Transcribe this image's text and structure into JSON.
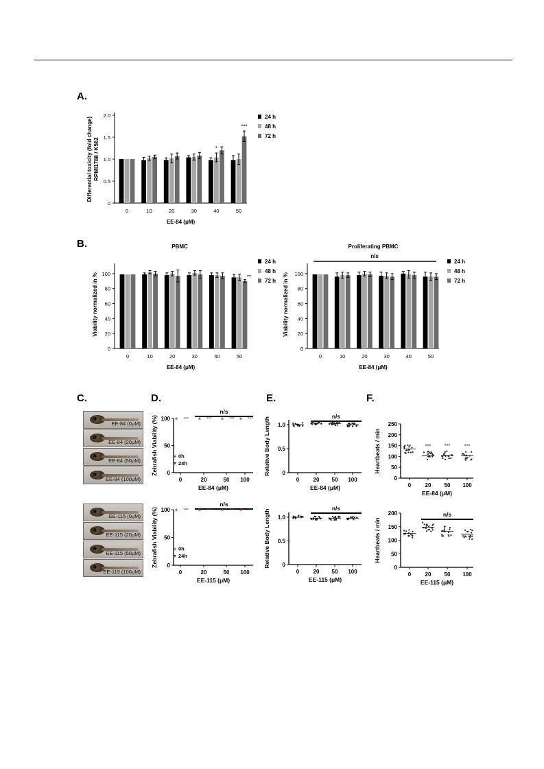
{
  "panel_labels": {
    "a": "A.",
    "b": "B.",
    "c": "C.",
    "d": "D.",
    "e": "E.",
    "f": "F."
  },
  "embryos": {
    "ee84": [
      "EE-84 (0μM)",
      "EE-84 (20μM)",
      "EE-84 (50μM)",
      "EE-84 (100μM)"
    ],
    "ee115": [
      "EE-115 (0μM)",
      "EE-115 (20μM)",
      "EE-115 (50μM)",
      "EE-115 (100μM)"
    ]
  },
  "colors": {
    "h24": "#000000",
    "h48": "#a6a6a6",
    "h72": "#6b6b6b",
    "h0_point": "#e8302a",
    "h24_point": "#2233cc"
  },
  "chart_data": [
    {
      "id": "A",
      "type": "bar",
      "title": "",
      "xlabel": "EE-84 (μM)",
      "ylabel_line1": "Differential toxicity (fold change)",
      "ylabel_line2": "RPMI1788 / K562",
      "categories": [
        "0",
        "10",
        "20",
        "30",
        "40",
        "50"
      ],
      "ylim": [
        0,
        2.0
      ],
      "yticks": [
        "0",
        "0.5",
        "1.0",
        "1.5",
        "2.0"
      ],
      "legend": [
        "24 h",
        "48 h",
        "72 h"
      ],
      "series": [
        {
          "name": "24 h",
          "values": [
            1.0,
            0.98,
            0.98,
            1.04,
            0.98,
            0.98
          ],
          "errors": [
            0,
            0.06,
            0.05,
            0.04,
            0.05,
            0.1
          ]
        },
        {
          "name": "48 h",
          "values": [
            1.0,
            1.02,
            1.02,
            1.05,
            1.04,
            1.0
          ],
          "errors": [
            0,
            0.05,
            0.1,
            0.07,
            0.1,
            0.12
          ]
        },
        {
          "name": "72 h",
          "values": [
            1.0,
            1.05,
            1.07,
            1.08,
            1.2,
            1.52
          ],
          "errors": [
            0,
            0.04,
            0.07,
            0.07,
            0.08,
            0.12
          ]
        }
      ],
      "annotations": [
        {
          "category": "40",
          "series": "48 h",
          "text": "*"
        },
        {
          "category": "50",
          "series": "72 h",
          "text": "***"
        }
      ]
    },
    {
      "id": "B1",
      "type": "bar",
      "title": "PBMC",
      "xlabel": "EE-84 (μM)",
      "ylabel": "Viability normalized in %",
      "categories": [
        "0",
        "10",
        "20",
        "30",
        "40",
        "50"
      ],
      "ylim": [
        0,
        110
      ],
      "yticks": [
        "0",
        "20",
        "40",
        "60",
        "80",
        "100"
      ],
      "legend": [
        "24 h",
        "48 h",
        "72 h"
      ],
      "series": [
        {
          "name": "24 h",
          "values": [
            99,
            99,
            98,
            98,
            98,
            95
          ],
          "errors": [
            0,
            2,
            3,
            3,
            3,
            4
          ]
        },
        {
          "name": "48 h",
          "values": [
            99,
            102,
            100,
            101,
            98,
            95
          ],
          "errors": [
            0,
            2,
            3,
            3,
            3,
            4
          ]
        },
        {
          "name": "72 h",
          "values": [
            99,
            100,
            97,
            99,
            97,
            90
          ],
          "errors": [
            0,
            3,
            8,
            5,
            4,
            2
          ]
        }
      ],
      "annotations": [
        {
          "category": "50",
          "series": "72 h",
          "text": "**"
        }
      ]
    },
    {
      "id": "B2",
      "type": "bar",
      "title": "Proliferating PBMC",
      "xlabel": "EE-84 (μM)",
      "ylabel": "Viability normalized in %",
      "categories": [
        "0",
        "10",
        "20",
        "30",
        "40",
        "50"
      ],
      "ylim": [
        0,
        110
      ],
      "yticks": [
        "0",
        "20",
        "40",
        "60",
        "80",
        "100"
      ],
      "legend": [
        "24 h",
        "48 h",
        "72 h"
      ],
      "series": [
        {
          "name": "24 h",
          "values": [
            99,
            96,
            98,
            97,
            100,
            96
          ],
          "errors": [
            0,
            5,
            4,
            5,
            3,
            6
          ]
        },
        {
          "name": "48 h",
          "values": [
            99,
            98,
            100,
            97,
            99,
            96
          ],
          "errors": [
            0,
            4,
            3,
            4,
            5,
            5
          ]
        },
        {
          "name": "72 h",
          "values": [
            99,
            98,
            99,
            96,
            98,
            96
          ],
          "errors": [
            0,
            3,
            3,
            4,
            4,
            4
          ]
        }
      ],
      "bracket": "n/s"
    },
    {
      "id": "D1",
      "type": "scatter",
      "xlabel": "EE-84 (μM)",
      "ylabel": "Zebrafish Viability (%)",
      "categories": [
        "0",
        "20",
        "50",
        "100"
      ],
      "yticks": [
        "0",
        "50",
        "100"
      ],
      "ylim": [
        0,
        100
      ],
      "series": [
        {
          "name": "0h",
          "values": [
            100,
            100,
            100,
            100
          ]
        },
        {
          "name": "24h",
          "values": [
            100,
            100,
            100,
            100
          ]
        }
      ],
      "point_annotations": [
        "***",
        "***",
        "***",
        "***"
      ],
      "bracket": "n/s"
    },
    {
      "id": "E1",
      "type": "scatter",
      "xlabel": "EE-84 (μM)",
      "ylabel": "Relative Body Length",
      "categories": [
        "0",
        "20",
        "50",
        "100"
      ],
      "yticks": [
        "0",
        "0.5",
        "1.0"
      ],
      "ylim": [
        0,
        1.1
      ],
      "means": [
        1.0,
        1.03,
        1.02,
        1.0
      ],
      "bracket": "n/s"
    },
    {
      "id": "F1",
      "type": "scatter",
      "xlabel": "EE-84 (μM)",
      "ylabel": "Heartbeats / min",
      "categories": [
        "0",
        "20",
        "50",
        "100"
      ],
      "yticks": [
        "0",
        "50",
        "100",
        "150",
        "200",
        "250"
      ],
      "ylim": [
        0,
        250
      ],
      "means": [
        135,
        103,
        105,
        103
      ],
      "annotations": [
        "",
        "***",
        "***",
        "***"
      ]
    },
    {
      "id": "D2",
      "type": "scatter",
      "xlabel": "EE-115 (μM)",
      "ylabel": "Zebrafish Viability (%)",
      "categories": [
        "0",
        "20",
        "50",
        "100"
      ],
      "yticks": [
        "0",
        "50",
        "100"
      ],
      "ylim": [
        0,
        100
      ],
      "series": [
        {
          "name": "0h",
          "values": [
            100,
            100,
            100,
            100
          ]
        },
        {
          "name": "24h",
          "values": [
            100,
            100,
            100,
            100
          ]
        }
      ],
      "point_annotations": [
        "***",
        "***",
        "***",
        "***"
      ],
      "bracket": "n/s"
    },
    {
      "id": "E2",
      "type": "scatter",
      "xlabel": "EE-115 (μM)",
      "ylabel": "Relative Body Length",
      "categories": [
        "0",
        "20",
        "50",
        "100"
      ],
      "yticks": [
        "0",
        "0.5",
        "1.0"
      ],
      "ylim": [
        0,
        1.1
      ],
      "means": [
        1.0,
        0.98,
        0.98,
        0.98
      ],
      "bracket": "n/s"
    },
    {
      "id": "F2",
      "type": "scatter",
      "xlabel": "EE-115 (μM)",
      "ylabel": "Heartbeats / min",
      "categories": [
        "0",
        "20",
        "50",
        "100"
      ],
      "yticks": [
        "0",
        "50",
        "100",
        "150",
        "200"
      ],
      "ylim": [
        0,
        200
      ],
      "means": [
        125,
        148,
        133,
        122
      ],
      "bracket": "n/s"
    }
  ]
}
